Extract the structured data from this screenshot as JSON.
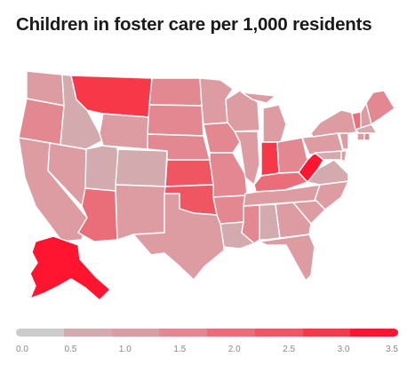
{
  "title": "Children in foster care per 1,000 residents",
  "colors": {
    "background": "#ffffff",
    "state_border": "#ffffff",
    "title_text": "#1a1a1a",
    "tick_text": "#888888"
  },
  "legend": {
    "bins": [
      {
        "range": [
          0.0,
          0.5
        ],
        "color": "#cccccc"
      },
      {
        "range": [
          0.5,
          1.0
        ],
        "color": "#d3aaae"
      },
      {
        "range": [
          1.0,
          1.5
        ],
        "color": "#dc9ca1"
      },
      {
        "range": [
          1.5,
          2.0
        ],
        "color": "#e38890"
      },
      {
        "range": [
          2.0,
          2.5
        ],
        "color": "#ea6e79"
      },
      {
        "range": [
          2.5,
          3.0
        ],
        "color": "#f05562"
      },
      {
        "range": [
          3.0,
          3.5
        ],
        "color": "#f63849"
      },
      {
        "range": [
          3.5,
          null
        ],
        "color": "#ff1530"
      }
    ],
    "ticks": [
      "0.0",
      "0.5",
      "1.0",
      "1.5",
      "2.0",
      "2.5",
      "3.0",
      "3.5"
    ]
  },
  "states": [
    {
      "name": "Washington",
      "level": 2
    },
    {
      "name": "Oregon",
      "level": 3
    },
    {
      "name": "California",
      "level": 2
    },
    {
      "name": "Nevada",
      "level": 2
    },
    {
      "name": "Idaho",
      "level": 1
    },
    {
      "name": "Montana",
      "level": 6
    },
    {
      "name": "Wyoming",
      "level": 2
    },
    {
      "name": "Utah",
      "level": 1
    },
    {
      "name": "Colorado",
      "level": 1
    },
    {
      "name": "Arizona",
      "level": 4
    },
    {
      "name": "New Mexico",
      "level": 2
    },
    {
      "name": "North Dakota",
      "level": 3
    },
    {
      "name": "South Dakota",
      "level": 3
    },
    {
      "name": "Nebraska",
      "level": 3
    },
    {
      "name": "Kansas",
      "level": 5
    },
    {
      "name": "Oklahoma",
      "level": 5
    },
    {
      "name": "Texas",
      "level": 2
    },
    {
      "name": "Minnesota",
      "level": 2
    },
    {
      "name": "Iowa",
      "level": 3
    },
    {
      "name": "Missouri",
      "level": 3
    },
    {
      "name": "Arkansas",
      "level": 3
    },
    {
      "name": "Louisiana",
      "level": 1
    },
    {
      "name": "Wisconsin",
      "level": 2
    },
    {
      "name": "Illinois",
      "level": 2
    },
    {
      "name": "Michigan",
      "level": 2
    },
    {
      "name": "Indiana",
      "level": 6
    },
    {
      "name": "Ohio",
      "level": 3
    },
    {
      "name": "Kentucky",
      "level": 4
    },
    {
      "name": "Tennessee",
      "level": 2
    },
    {
      "name": "Mississippi",
      "level": 3
    },
    {
      "name": "Alabama",
      "level": 1
    },
    {
      "name": "Georgia",
      "level": 2
    },
    {
      "name": "Florida",
      "level": 2
    },
    {
      "name": "South Carolina",
      "level": 2
    },
    {
      "name": "North Carolina",
      "level": 2
    },
    {
      "name": "Virginia",
      "level": 1
    },
    {
      "name": "West Virginia",
      "level": 7
    },
    {
      "name": "Pennsylvania",
      "level": 2
    },
    {
      "name": "New York",
      "level": 2
    },
    {
      "name": "Maryland",
      "level": 1
    },
    {
      "name": "Delaware",
      "level": 2
    },
    {
      "name": "New Jersey",
      "level": 2
    },
    {
      "name": "Vermont",
      "level": 4
    },
    {
      "name": "New Hampshire",
      "level": 2
    },
    {
      "name": "Maine",
      "level": 3
    },
    {
      "name": "Massachusetts",
      "level": 1
    },
    {
      "name": "Connecticut",
      "level": 2
    },
    {
      "name": "Rhode Island",
      "level": 3
    },
    {
      "name": "Alaska",
      "level": 7
    }
  ]
}
